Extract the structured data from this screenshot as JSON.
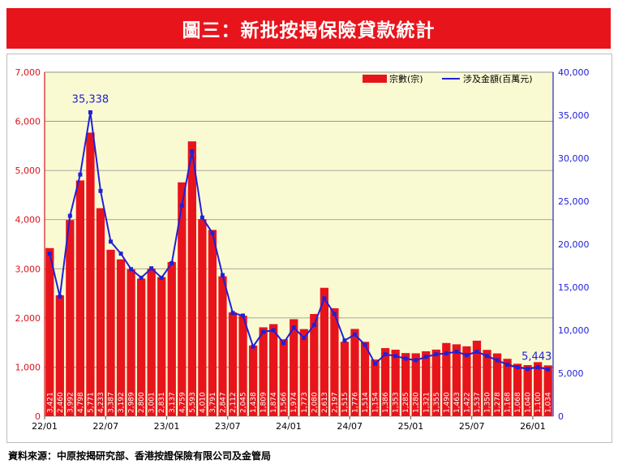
{
  "header": {
    "title": "圖三：新批按揭保險貸款統計"
  },
  "footer": {
    "source": "資料來源：中原按揭研究部、香港按證保險有限公司及金管局"
  },
  "colors": {
    "bar": "#e8141c",
    "line": "#2020d8",
    "left_axis": "#d8141c",
    "right_axis": "#2020d8",
    "plot_bg": "#fafad2"
  },
  "chart_data": {
    "type": "bar",
    "legend": {
      "position": "top-right",
      "bar_label": "宗數(宗)",
      "line_label": "涉及金額(百萬元)"
    },
    "left_axis": {
      "ylim": [
        0,
        7000
      ],
      "ticks": [
        "0",
        "1,000",
        "2,000",
        "3,000",
        "4,000",
        "5,000",
        "6,000",
        "7,000"
      ]
    },
    "right_axis": {
      "ylim": [
        0,
        40000
      ],
      "ticks": [
        "0",
        "5,000",
        "10,000",
        "15,000",
        "20,000",
        "25,000",
        "30,000",
        "35,000",
        "40,000"
      ]
    },
    "x_ticks": [
      {
        "index": 0,
        "label": "22/01"
      },
      {
        "index": 6,
        "label": "22/07"
      },
      {
        "index": 12,
        "label": "23/01"
      },
      {
        "index": 18,
        "label": "23/07"
      },
      {
        "index": 24,
        "label": "24/01"
      },
      {
        "index": 30,
        "label": "24/07"
      },
      {
        "index": 36,
        "label": "25/01"
      },
      {
        "index": 42,
        "label": "25/07"
      },
      {
        "index": 48,
        "label": "26/01"
      }
    ],
    "categories": [
      "22/01",
      "22/02",
      "22/03",
      "22/04",
      "22/05",
      "22/06",
      "22/07",
      "22/08",
      "22/09",
      "22/10",
      "22/11",
      "22/12",
      "23/01",
      "23/02",
      "23/03",
      "23/04",
      "23/05",
      "23/06",
      "23/07",
      "23/08",
      "23/09",
      "23/10",
      "23/11",
      "23/12",
      "24/01",
      "24/02",
      "24/03",
      "24/04",
      "24/05",
      "24/06",
      "24/07",
      "24/08",
      "24/09",
      "24/10",
      "24/11",
      "24/12",
      "25/01",
      "25/02",
      "25/03",
      "25/04",
      "25/05",
      "25/06",
      "25/07",
      "25/08",
      "25/09",
      "25/10",
      "25/11",
      "25/12",
      "26/01",
      "26/02"
    ],
    "bar_labels": [
      "3,421",
      "2,460",
      "3,992",
      "4,798",
      "5,771",
      "4,233",
      "3,387",
      "3,192",
      "2,989",
      "2,800",
      "3,001",
      "2,831",
      "3,137",
      "4,759",
      "5,593",
      "4,010",
      "3,791",
      "2,847",
      "2,112",
      "2,045",
      "1,438",
      "1,809",
      "1,874",
      "1,566",
      "1,974",
      "1,773",
      "2,080",
      "2,613",
      "2,197",
      "1,515",
      "1,776",
      "1,514",
      "1,154",
      "1,386",
      "1,353",
      "1,285",
      "1,280",
      "1,321",
      "1,355",
      "1,490",
      "1,463",
      "1,422",
      "1,537",
      "1,350",
      "1,278",
      "1,168",
      "1,068",
      "1,040",
      "1,100",
      "1,034"
    ],
    "series": [
      {
        "name": "宗數(宗)",
        "type": "bar",
        "axis": "left",
        "values": [
          3421,
          2460,
          3992,
          4798,
          5771,
          4233,
          3387,
          3192,
          2989,
          2800,
          3001,
          2831,
          3137,
          4759,
          5593,
          4010,
          3791,
          2847,
          2112,
          2045,
          1438,
          1809,
          1874,
          1566,
          1974,
          1773,
          2080,
          2613,
          2197,
          1515,
          1776,
          1514,
          1154,
          1386,
          1353,
          1285,
          1280,
          1321,
          1355,
          1490,
          1463,
          1422,
          1537,
          1350,
          1278,
          1168,
          1068,
          1040,
          1100,
          1034
        ]
      },
      {
        "name": "涉及金額(百萬元)",
        "type": "line",
        "axis": "right",
        "values": [
          18900,
          13900,
          23300,
          28100,
          35338,
          26200,
          20300,
          18900,
          17100,
          16100,
          17200,
          16100,
          17800,
          24500,
          30800,
          23100,
          21300,
          16400,
          12000,
          11700,
          8100,
          9800,
          10000,
          8500,
          10300,
          9100,
          10600,
          13700,
          11900,
          8800,
          9500,
          8300,
          6100,
          7200,
          7000,
          6700,
          6500,
          6900,
          7200,
          7300,
          7500,
          7100,
          7500,
          7000,
          6500,
          6000,
          5700,
          5500,
          5700,
          5443
        ]
      }
    ],
    "annotations": [
      {
        "label": "35,338",
        "series": "涉及金額(百萬元)",
        "index": 4
      },
      {
        "label": "5,443",
        "series": "涉及金額(百萬元)",
        "index": 49
      }
    ]
  }
}
